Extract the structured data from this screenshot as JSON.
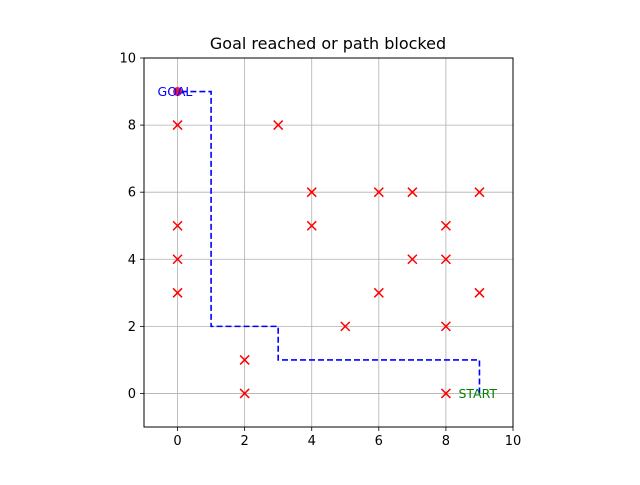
{
  "chart_data": {
    "type": "scatter",
    "title": "Goal reached or path blocked",
    "xlabel": "",
    "ylabel": "",
    "xlim": [
      -1,
      10
    ],
    "ylim": [
      -1,
      10
    ],
    "xticks": [
      "0",
      "2",
      "4",
      "6",
      "8",
      "10"
    ],
    "yticks": [
      "0",
      "2",
      "4",
      "6",
      "8",
      "10"
    ],
    "grid": true,
    "obstacles": [
      [
        0,
        8
      ],
      [
        3,
        8
      ],
      [
        4,
        6
      ],
      [
        6,
        6
      ],
      [
        7,
        6
      ],
      [
        9,
        6
      ],
      [
        0,
        5
      ],
      [
        4,
        5
      ],
      [
        8,
        5
      ],
      [
        0,
        4
      ],
      [
        7,
        4
      ],
      [
        8,
        4
      ],
      [
        0,
        3
      ],
      [
        6,
        3
      ],
      [
        9,
        3
      ],
      [
        5,
        2
      ],
      [
        8,
        2
      ],
      [
        2,
        1
      ],
      [
        2,
        0
      ],
      [
        8,
        0
      ]
    ],
    "path": [
      [
        9,
        0
      ],
      [
        9,
        1
      ],
      [
        3,
        1
      ],
      [
        3,
        2
      ],
      [
        1,
        2
      ],
      [
        1,
        9
      ],
      [
        0,
        9
      ]
    ],
    "goal": {
      "x": 0,
      "y": 9,
      "label": "GOAL"
    },
    "start": {
      "x": 9,
      "y": 0,
      "label": "START"
    },
    "colors": {
      "obstacle": "#ff0000",
      "path": "#0000ff",
      "goal_marker": "#e8174a",
      "goal_text": "#0000ff",
      "start_text": "#008000",
      "grid": "#b0b0b0"
    }
  }
}
